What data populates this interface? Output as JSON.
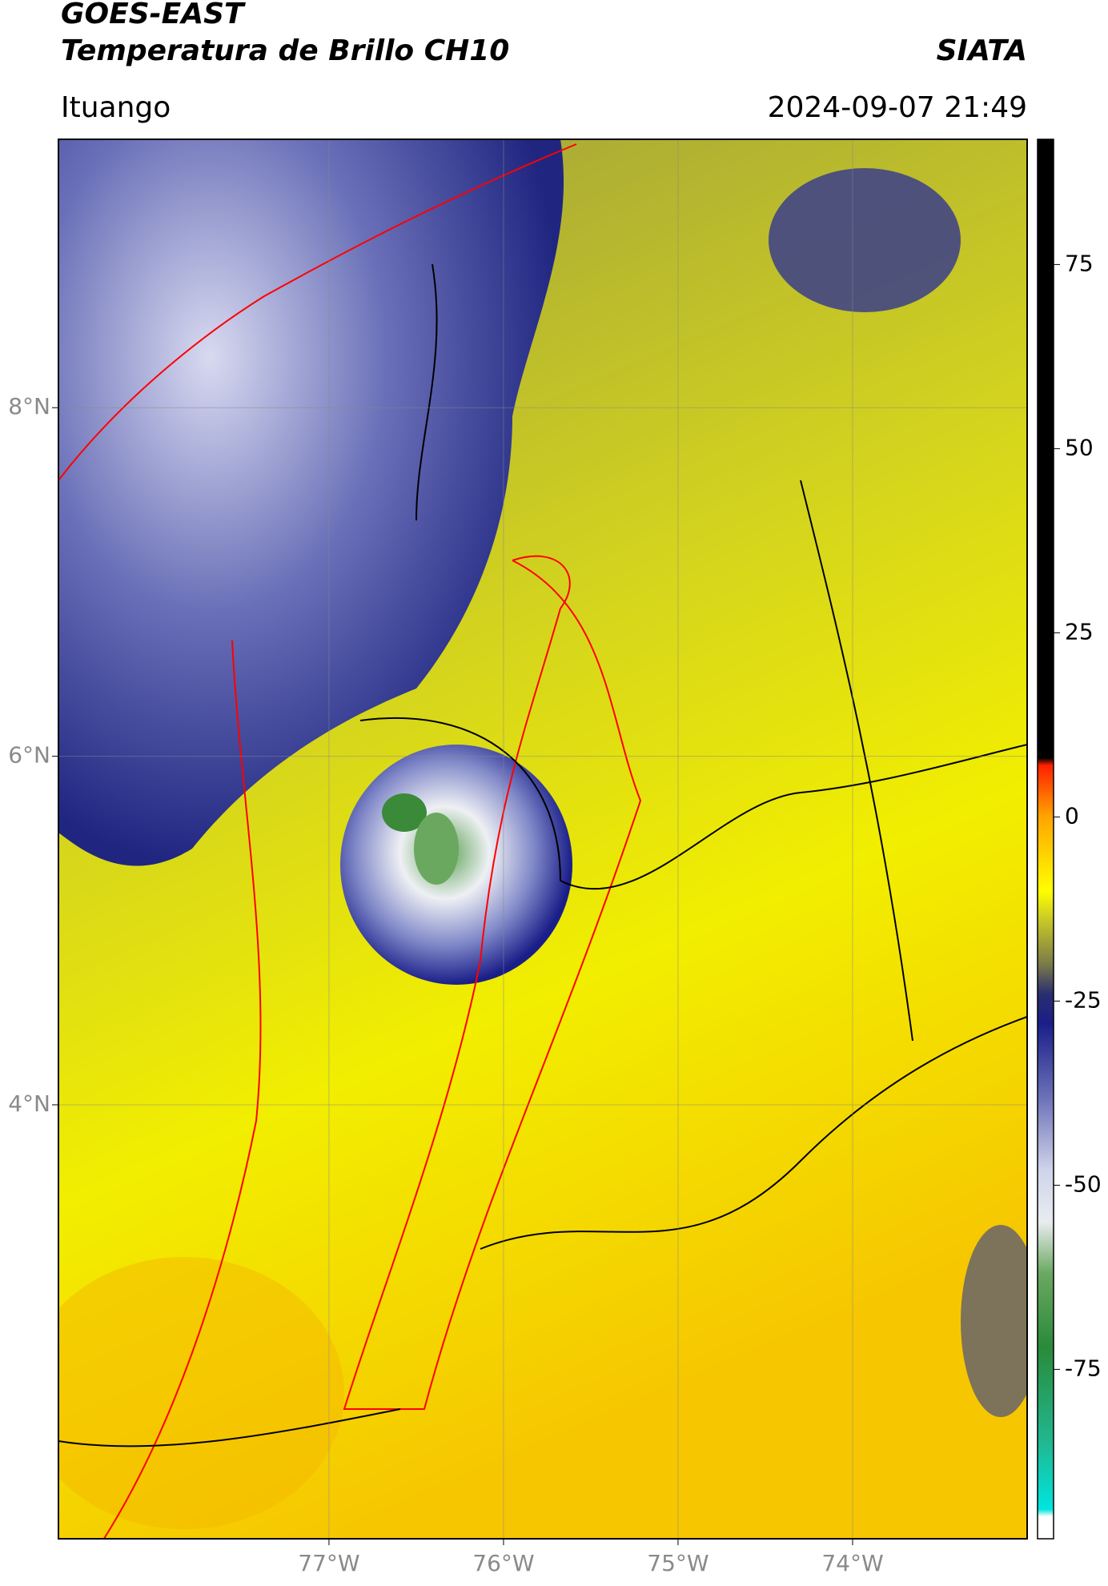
{
  "header": {
    "title": "GOES-EAST",
    "subtitle": "Temperatura de Brillo CH10",
    "brand": "SIATA",
    "location": "Ituango",
    "datetime": "2024-09-07 21:49"
  },
  "map": {
    "lonlim": [
      -78.55,
      -73.0
    ],
    "latlim": [
      1.51,
      9.54
    ],
    "lonticks": [
      {
        "value": -77,
        "label": "77°W"
      },
      {
        "value": -76,
        "label": "76°W"
      },
      {
        "value": -75,
        "label": "75°W"
      },
      {
        "value": -74,
        "label": "74°W"
      }
    ],
    "latticks": [
      {
        "value": 8,
        "label": "8°N"
      },
      {
        "value": 6,
        "label": "6°N"
      },
      {
        "value": 4,
        "label": "4°N"
      }
    ],
    "grid": true
  },
  "colorbar": {
    "lim": [
      -98,
      92
    ],
    "ticks": [
      -75,
      -50,
      -25,
      0,
      25,
      50,
      75
    ],
    "colormap": [
      {
        "value": -98,
        "color": "#ffffff"
      },
      {
        "value": -95,
        "color": "#ffffff"
      },
      {
        "value": -94,
        "color": "#00e5e0"
      },
      {
        "value": -85,
        "color": "#20b890"
      },
      {
        "value": -72,
        "color": "#2a8a3a"
      },
      {
        "value": -62,
        "color": "#6aa860"
      },
      {
        "value": -55,
        "color": "#e8ecf0"
      },
      {
        "value": -48,
        "color": "#d0d4ea"
      },
      {
        "value": -38,
        "color": "#6a70b8"
      },
      {
        "value": -28,
        "color": "#1a1e88"
      },
      {
        "value": -24,
        "color": "#2a2e70"
      },
      {
        "value": -20,
        "color": "#7a7a48"
      },
      {
        "value": -14,
        "color": "#c8c828"
      },
      {
        "value": -10,
        "color": "#ffff00"
      },
      {
        "value": 0,
        "color": "#ffa500"
      },
      {
        "value": 7,
        "color": "#ff2000"
      },
      {
        "value": 8,
        "color": "#000000"
      },
      {
        "value": 92,
        "color": "#000000"
      }
    ]
  }
}
